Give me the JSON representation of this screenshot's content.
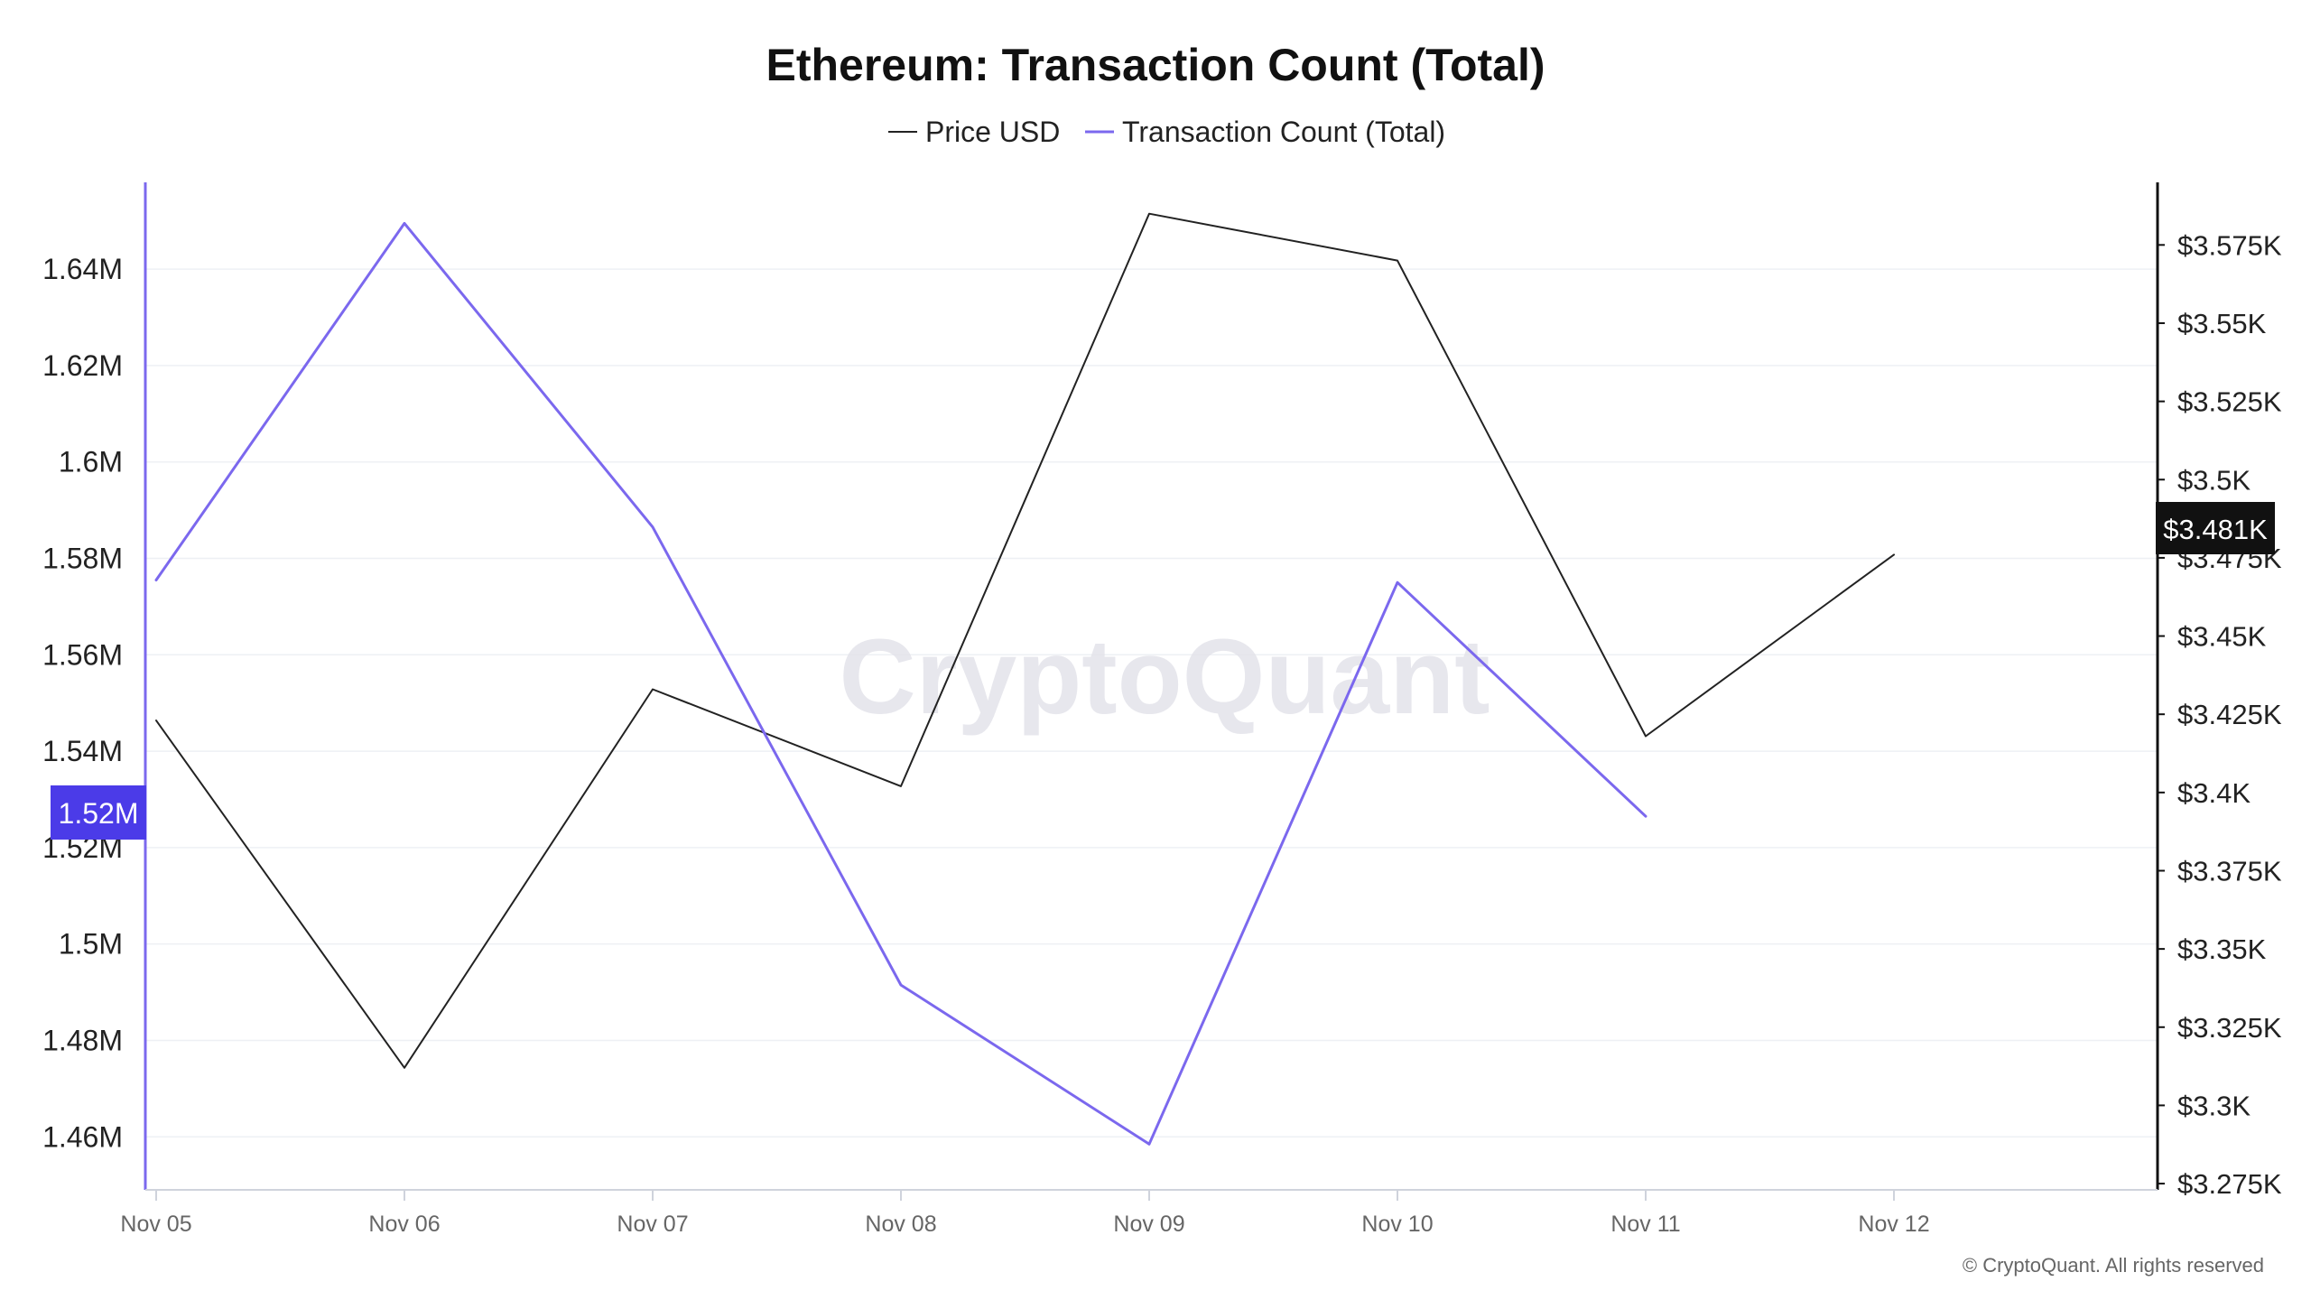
{
  "chart_data": {
    "type": "line",
    "title": "Ethereum: Transaction Count (Total)",
    "legend": {
      "placement": "top-center",
      "items": [
        {
          "label": "Price USD",
          "color": "#222222"
        },
        {
          "label": "Transaction Count (Total)",
          "color": "#7b68ee"
        }
      ]
    },
    "x": [
      "Nov 05",
      "Nov 06",
      "Nov 07",
      "Nov 08",
      "Nov 09",
      "Nov 10",
      "Nov 11",
      "Nov 12"
    ],
    "left_axis": {
      "ticks": [
        1460000,
        1480000,
        1500000,
        1520000,
        1540000,
        1560000,
        1580000,
        1600000,
        1620000,
        1640000
      ],
      "tick_labels": [
        "1.46M",
        "1.48M",
        "1.5M",
        "1.52M",
        "1.54M",
        "1.56M",
        "1.58M",
        "1.6M",
        "1.62M",
        "1.64M"
      ],
      "range": [
        1449000,
        1658000
      ]
    },
    "right_axis": {
      "ticks": [
        3275,
        3300,
        3325,
        3350,
        3375,
        3400,
        3425,
        3450,
        3475,
        3500,
        3525,
        3550,
        3575
      ],
      "tick_labels": [
        "$3.275K",
        "$3.3K",
        "$3.325K",
        "$3.35K",
        "$3.375K",
        "$3.4K",
        "$3.425K",
        "$3.45K",
        "$3.475K",
        "$3.5K",
        "$3.525K",
        "$3.55K",
        "$3.575K"
      ],
      "range": [
        3273,
        3595
      ]
    },
    "series": [
      {
        "name": "Price USD",
        "axis": "right",
        "color": "#222222",
        "values": [
          3423,
          3312,
          3433,
          3402,
          3585,
          3570,
          3418,
          3476
        ]
      },
      {
        "name": "Transaction Count (Total)",
        "axis": "left",
        "color": "#7b68ee",
        "values": [
          1575500,
          1649500,
          1586500,
          1491500,
          1458500,
          1575000,
          1526500,
          null
        ]
      }
    ],
    "current_value_badges": {
      "left": {
        "label": "1.52M",
        "color": "#4b3be8"
      },
      "right": {
        "label": "$3.481K",
        "color": "#111111"
      }
    },
    "watermark": "CryptoQuant",
    "credit": "© CryptoQuant. All rights reserved",
    "grid": true
  }
}
